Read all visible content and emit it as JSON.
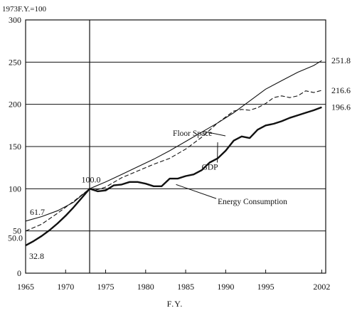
{
  "chart_data": {
    "type": "line",
    "title": "",
    "ylabel": "1973F.Y.=100",
    "xlabel": "F.Y.",
    "xlim": [
      1965,
      2002.5
    ],
    "ylim": [
      0,
      300
    ],
    "x_ticks": [
      "1965",
      "1970",
      "1975",
      "1980",
      "1985",
      "1990",
      "1995",
      "2002"
    ],
    "x_tick_values": [
      1965,
      1970,
      1975,
      1980,
      1985,
      1990,
      1995,
      2002
    ],
    "y_ticks": [
      "0",
      "50",
      "100",
      "150",
      "200",
      "250",
      "300"
    ],
    "y_tick_values": [
      0,
      50,
      100,
      150,
      200,
      250,
      300
    ],
    "grid": "horizontal",
    "reference_x": 1973,
    "series": [
      {
        "name": "Floor Space",
        "style": "solid-thin",
        "x": [
          1965,
          1967,
          1969,
          1971,
          1973,
          1975,
          1977,
          1979,
          1981,
          1983,
          1985,
          1987,
          1989,
          1991,
          1993,
          1995,
          1997,
          1999,
          2001,
          2002
        ],
        "values": [
          61.7,
          67,
          74,
          84,
          100,
          108,
          117,
          126,
          135,
          145,
          156,
          167,
          178,
          190,
          204,
          218,
          228,
          238,
          246,
          251.8
        ]
      },
      {
        "name": "GDP",
        "style": "dashed",
        "x": [
          1965,
          1967,
          1969,
          1971,
          1973,
          1974,
          1975,
          1977,
          1979,
          1981,
          1983,
          1985,
          1987,
          1989,
          1990,
          1991,
          1992,
          1993,
          1994,
          1995,
          1996,
          1997,
          1998,
          1999,
          2000,
          2001,
          2002
        ],
        "values": [
          50.0,
          58,
          71,
          85,
          100,
          99,
          102,
          113,
          121,
          129,
          136,
          147,
          161,
          178,
          185,
          192,
          194,
          193,
          196,
          201,
          208,
          210,
          208,
          210,
          216,
          214,
          216.6
        ]
      },
      {
        "name": "Energy Consumption",
        "style": "solid-thick",
        "x": [
          1965,
          1966,
          1967,
          1968,
          1969,
          1970,
          1971,
          1972,
          1973,
          1974,
          1975,
          1976,
          1977,
          1978,
          1979,
          1980,
          1981,
          1982,
          1983,
          1984,
          1985,
          1986,
          1987,
          1988,
          1989,
          1990,
          1991,
          1992,
          1993,
          1994,
          1995,
          1996,
          1997,
          1998,
          1999,
          2000,
          2001,
          2002
        ],
        "values": [
          32.8,
          38,
          44,
          51,
          59,
          68,
          78,
          89,
          100,
          97,
          98,
          104,
          105,
          108,
          108,
          106,
          103,
          103,
          112,
          112,
          115,
          117,
          122,
          131,
          136,
          145,
          157,
          162,
          160,
          170,
          175,
          177,
          180,
          184,
          187,
          190,
          193,
          196.6
        ]
      }
    ],
    "annotations": [
      {
        "text": "Floor Space",
        "x": 1983.4,
        "y": 166,
        "ax": 1987.2,
        "ay": 168
      },
      {
        "text": "GDP",
        "x": 1987,
        "y": 126,
        "ax": 1989,
        "ay": 155
      },
      {
        "text": "Energy Consumption",
        "x": 1989,
        "y": 85,
        "ax": 1983.8,
        "ay": 105
      }
    ],
    "value_labels": [
      {
        "text": "61.7",
        "x": 1965,
        "y": 61.7,
        "pos": "above-right"
      },
      {
        "text": "50.0",
        "x": 1965,
        "y": 50.0,
        "pos": "below-left"
      },
      {
        "text": "32.8",
        "x": 1965,
        "y": 32.8,
        "pos": "below-right"
      },
      {
        "text": "100.0",
        "x": 1973,
        "y": 100,
        "pos": "above"
      },
      {
        "text": "251.8",
        "x": 2002.5,
        "y": 251.8,
        "pos": "right"
      },
      {
        "text": "216.6",
        "x": 2002.5,
        "y": 216.6,
        "pos": "right"
      },
      {
        "text": "196.6",
        "x": 2002.5,
        "y": 196.6,
        "pos": "right"
      }
    ]
  }
}
